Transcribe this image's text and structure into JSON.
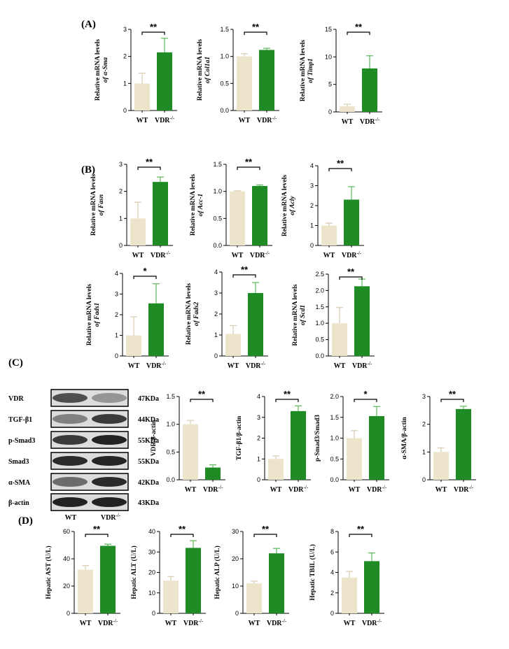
{
  "figure": {
    "panel_labels": [
      "(A)",
      "(B)",
      "(C)",
      "(D)"
    ],
    "colors": {
      "wt": "#ede4cc",
      "wt_err": "#d8ccb0",
      "ko": "#1e8b24",
      "ko_err": "#5cb85c",
      "axis": "#000000"
    },
    "western_blot": {
      "bands": [
        {
          "protein": "VDR",
          "size": "47KDa"
        },
        {
          "protein": "TGF-β1",
          "size": "44KDa"
        },
        {
          "protein": "p-Smad3",
          "size": "55KDa"
        },
        {
          "protein": "Smad3",
          "size": "55KDa"
        },
        {
          "protein": "α-SMA",
          "size": "42KDa"
        },
        {
          "protein": "β-actin",
          "size": "43KDa"
        }
      ],
      "lanes": [
        "WT",
        "VDR-/-"
      ],
      "intensity": [
        [
          0.7,
          0.35
        ],
        [
          0.45,
          0.8
        ],
        [
          0.8,
          0.92
        ],
        [
          0.88,
          0.9
        ],
        [
          0.55,
          0.88
        ],
        [
          0.92,
          0.92
        ]
      ]
    }
  },
  "chart_data": [
    {
      "type": "bar",
      "panel": "A",
      "categories": [
        "WT",
        "VDR-/-"
      ],
      "values": [
        1.0,
        2.15
      ],
      "errors": [
        0.38,
        0.52
      ],
      "ylim": [
        0,
        3
      ],
      "yticks": [
        "0",
        "1",
        "2",
        "3"
      ],
      "ylabel_lines": [
        "Relative mRNA levels",
        "of α-Sma"
      ],
      "significance": "**"
    },
    {
      "type": "bar",
      "panel": "A",
      "categories": [
        "WT",
        "VDR-/-"
      ],
      "values": [
        1.0,
        1.12
      ],
      "errors": [
        0.05,
        0.03
      ],
      "ylim": [
        0,
        1.5
      ],
      "yticks": [
        "0.0",
        "0.5",
        "1.0",
        "1.5"
      ],
      "ylabel_lines": [
        "Relative mRNA levels",
        "of Col1a1"
      ],
      "significance": "**"
    },
    {
      "type": "bar",
      "panel": "A",
      "categories": [
        "WT",
        "VDR-/-"
      ],
      "values": [
        1.0,
        7.9
      ],
      "errors": [
        0.4,
        2.3
      ],
      "ylim": [
        0,
        15
      ],
      "yticks": [
        "0",
        "5",
        "10",
        "15"
      ],
      "ylabel_lines": [
        "Relative mRNA levels",
        "of Timp1"
      ],
      "significance": "**"
    },
    {
      "type": "bar",
      "panel": "B",
      "categories": [
        "WT",
        "VDR-/-"
      ],
      "values": [
        1.0,
        2.35
      ],
      "errors": [
        0.6,
        0.18
      ],
      "ylim": [
        0,
        3
      ],
      "yticks": [
        "0",
        "1",
        "2",
        "3"
      ],
      "ylabel_lines": [
        "Relative mRNA levels",
        "of Fasn"
      ],
      "significance": "**"
    },
    {
      "type": "bar",
      "panel": "B",
      "categories": [
        "WT",
        "VDR-/-"
      ],
      "values": [
        1.0,
        1.1
      ],
      "errors": [
        0.01,
        0.02
      ],
      "ylim": [
        0,
        1.5
      ],
      "yticks": [
        "0.0",
        "0.5",
        "1.0",
        "1.5"
      ],
      "ylabel_lines": [
        "Relative mRNA levels",
        "of Acc-1"
      ],
      "significance": "**"
    },
    {
      "type": "bar",
      "panel": "B",
      "categories": [
        "WT",
        "VDR-/-"
      ],
      "values": [
        1.0,
        2.3
      ],
      "errors": [
        0.12,
        0.65
      ],
      "ylim": [
        0,
        4
      ],
      "yticks": [
        "0",
        "1",
        "2",
        "3",
        "4"
      ],
      "ylabel_lines": [
        "Relative mRNA levels",
        "of Acly"
      ],
      "significance": "**"
    },
    {
      "type": "bar",
      "panel": "B",
      "categories": [
        "WT",
        "VDR-/-"
      ],
      "values": [
        1.0,
        2.55
      ],
      "errors": [
        0.9,
        0.95
      ],
      "ylim": [
        0,
        4
      ],
      "yticks": [
        "0",
        "1",
        "2",
        "3",
        "4"
      ],
      "ylabel_lines": [
        "Relative mRNA levels",
        "of Fads1"
      ],
      "significance": "*"
    },
    {
      "type": "bar",
      "panel": "B",
      "categories": [
        "WT",
        "VDR-/-"
      ],
      "values": [
        1.05,
        3.0
      ],
      "errors": [
        0.4,
        0.5
      ],
      "ylim": [
        0,
        4
      ],
      "yticks": [
        "0",
        "1",
        "2",
        "3",
        "4"
      ],
      "ylabel_lines": [
        "Relative mRNA levels",
        "of Fads2"
      ],
      "significance": "**"
    },
    {
      "type": "bar",
      "panel": "B",
      "categories": [
        "WT",
        "VDR-/-"
      ],
      "values": [
        1.0,
        2.13
      ],
      "errors": [
        0.48,
        0.22
      ],
      "ylim": [
        0,
        2.5
      ],
      "yticks": [
        "0.0",
        "0.5",
        "1.0",
        "1.5",
        "2.0",
        "2.5"
      ],
      "ylabel_lines": [
        "Relative mRNA levels",
        "of Scd1"
      ],
      "significance": "**"
    },
    {
      "type": "bar",
      "panel": "C",
      "categories": [
        "WT",
        "VDR-/-"
      ],
      "values": [
        1.0,
        0.22
      ],
      "errors": [
        0.07,
        0.05
      ],
      "ylim": [
        0,
        1.5
      ],
      "yticks": [
        "0.0",
        "0.5",
        "1.0",
        "1.5"
      ],
      "ylabel_lines": [
        "VDR/β-actin"
      ],
      "significance": "**"
    },
    {
      "type": "bar",
      "panel": "C",
      "categories": [
        "WT",
        "VDR-/-"
      ],
      "values": [
        1.0,
        3.3
      ],
      "errors": [
        0.15,
        0.25
      ],
      "ylim": [
        0,
        4
      ],
      "yticks": [
        "0",
        "1",
        "2",
        "3",
        "4"
      ],
      "ylabel_lines": [
        "TGF-β1/β-actin"
      ],
      "significance": "**"
    },
    {
      "type": "bar",
      "panel": "C",
      "categories": [
        "WT",
        "VDR-/-"
      ],
      "values": [
        1.0,
        1.53
      ],
      "errors": [
        0.18,
        0.23
      ],
      "ylim": [
        0,
        2.0
      ],
      "yticks": [
        "0.0",
        "0.5",
        "1.0",
        "1.5",
        "2.0"
      ],
      "ylabel_lines": [
        "p-Smad3/Smad3"
      ],
      "significance": "*"
    },
    {
      "type": "bar",
      "panel": "C",
      "categories": [
        "WT",
        "VDR-/-"
      ],
      "values": [
        1.0,
        2.55
      ],
      "errors": [
        0.15,
        0.1
      ],
      "ylim": [
        0,
        3
      ],
      "yticks": [
        "0",
        "1",
        "2",
        "3"
      ],
      "ylabel_lines": [
        "α-SMA/β-actin"
      ],
      "significance": "**"
    },
    {
      "type": "bar",
      "panel": "D",
      "categories": [
        "WT",
        "VDR-/-"
      ],
      "values": [
        32,
        49.5
      ],
      "errors": [
        3,
        1.2
      ],
      "ylim": [
        0,
        60
      ],
      "yticks": [
        "0",
        "20",
        "40",
        "60"
      ],
      "ylabel_lines": [
        "Hepatic AST (U/L)"
      ],
      "significance": "**"
    },
    {
      "type": "bar",
      "panel": "D",
      "categories": [
        "WT",
        "VDR-/-"
      ],
      "values": [
        16,
        32
      ],
      "errors": [
        2,
        3.5
      ],
      "ylim": [
        0,
        40
      ],
      "yticks": [
        "0",
        "10",
        "20",
        "30",
        "40"
      ],
      "ylabel_lines": [
        "Hepatic ALT (U/L)"
      ],
      "significance": "**"
    },
    {
      "type": "bar",
      "panel": "D",
      "categories": [
        "WT",
        "VDR-/-"
      ],
      "values": [
        11,
        22
      ],
      "errors": [
        0.8,
        1.8
      ],
      "ylim": [
        0,
        30
      ],
      "yticks": [
        "0",
        "10",
        "20",
        "30"
      ],
      "ylabel_lines": [
        "Hepatic ALP (U/L)"
      ],
      "significance": "**"
    },
    {
      "type": "bar",
      "panel": "D",
      "categories": [
        "WT",
        "VDR-/-"
      ],
      "values": [
        3.5,
        5.1
      ],
      "errors": [
        0.6,
        0.8
      ],
      "ylim": [
        0,
        8
      ],
      "yticks": [
        "0",
        "2",
        "4",
        "6",
        "8"
      ],
      "ylabel_lines": [
        "Hepatic TBIL (U/L)"
      ],
      "significance": "**"
    }
  ]
}
